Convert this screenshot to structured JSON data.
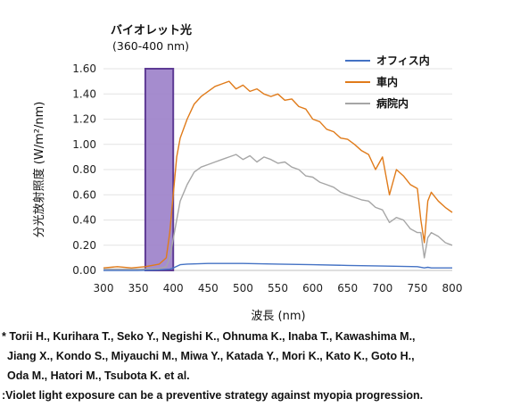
{
  "chart_data": {
    "type": "line",
    "ylabel": "分光放射照度 (W/m²/nm)",
    "xlabel": "波長 (nm)",
    "xlim": [
      300,
      800
    ],
    "ylim": [
      0,
      1.6
    ],
    "x_ticks": [
      "300",
      "350",
      "400",
      "450",
      "500",
      "550",
      "600",
      "650",
      "700",
      "750",
      "800"
    ],
    "y_ticks": [
      "0.00",
      "0.20",
      "0.40",
      "0.60",
      "0.80",
      "1.00",
      "1.20",
      "1.40",
      "1.60"
    ],
    "grid": "horizontal",
    "legend_position": "top-right",
    "annotation": {
      "title": "バイオレット光",
      "subtitle": "(360-400 nm)",
      "range": [
        360,
        400
      ]
    },
    "series": [
      {
        "name": "オフィス内",
        "color": "#4472C4",
        "x": [
          300,
          350,
          380,
          395,
          400,
          410,
          420,
          450,
          500,
          550,
          600,
          650,
          700,
          750,
          760,
          765,
          770,
          800
        ],
        "y": [
          0.0,
          0.0,
          0.005,
          0.01,
          0.02,
          0.045,
          0.05,
          0.055,
          0.055,
          0.05,
          0.045,
          0.04,
          0.035,
          0.03,
          0.02,
          0.025,
          0.02,
          0.02
        ]
      },
      {
        "name": "車内",
        "color": "#E07B1A",
        "x": [
          300,
          320,
          340,
          360,
          380,
          390,
          395,
          400,
          405,
          410,
          420,
          430,
          440,
          450,
          460,
          470,
          480,
          490,
          500,
          510,
          520,
          530,
          540,
          550,
          560,
          570,
          580,
          590,
          600,
          610,
          620,
          630,
          640,
          650,
          660,
          670,
          680,
          690,
          700,
          710,
          720,
          730,
          740,
          750,
          755,
          760,
          765,
          770,
          780,
          790,
          800
        ],
        "y": [
          0.02,
          0.03,
          0.02,
          0.03,
          0.05,
          0.1,
          0.3,
          0.6,
          0.9,
          1.05,
          1.2,
          1.32,
          1.38,
          1.42,
          1.46,
          1.48,
          1.5,
          1.44,
          1.47,
          1.42,
          1.44,
          1.4,
          1.38,
          1.4,
          1.35,
          1.36,
          1.3,
          1.28,
          1.2,
          1.18,
          1.12,
          1.1,
          1.05,
          1.04,
          1.0,
          0.95,
          0.92,
          0.8,
          0.9,
          0.6,
          0.8,
          0.75,
          0.68,
          0.65,
          0.4,
          0.22,
          0.55,
          0.62,
          0.55,
          0.5,
          0.46
        ]
      },
      {
        "name": "病院内",
        "color": "#A6A6A6",
        "x": [
          300,
          350,
          380,
          390,
          395,
          400,
          405,
          410,
          420,
          430,
          440,
          450,
          460,
          470,
          480,
          490,
          500,
          510,
          520,
          530,
          540,
          550,
          560,
          570,
          580,
          590,
          600,
          610,
          620,
          630,
          640,
          650,
          660,
          670,
          680,
          690,
          700,
          710,
          720,
          730,
          740,
          750,
          755,
          760,
          765,
          770,
          780,
          790,
          800
        ],
        "y": [
          0.01,
          0.01,
          0.015,
          0.03,
          0.1,
          0.25,
          0.4,
          0.55,
          0.68,
          0.78,
          0.82,
          0.84,
          0.86,
          0.88,
          0.9,
          0.92,
          0.88,
          0.91,
          0.86,
          0.9,
          0.88,
          0.85,
          0.86,
          0.82,
          0.8,
          0.75,
          0.74,
          0.7,
          0.68,
          0.66,
          0.62,
          0.6,
          0.58,
          0.56,
          0.55,
          0.5,
          0.48,
          0.38,
          0.42,
          0.4,
          0.33,
          0.3,
          0.3,
          0.1,
          0.26,
          0.3,
          0.27,
          0.22,
          0.2
        ]
      }
    ]
  },
  "references": {
    "line1": "* Torii H., Kurihara T., Seko Y., Negishi K., Ohnuma K., Inaba T., Kawashima M.,",
    "line2": "Jiang X., Kondo S., Miyauchi M., Miwa Y., Katada Y., Mori K., Kato K., Goto H.,",
    "line3": "Oda M., Hatori M., Tsubota K. et al.",
    "line4": ":Violet light exposure can be a preventive strategy against myopia progression."
  }
}
